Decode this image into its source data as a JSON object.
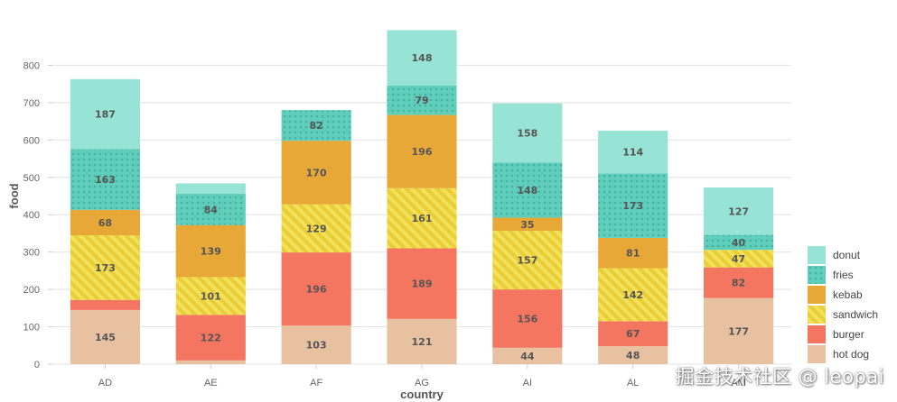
{
  "chart_data": {
    "type": "bar",
    "stacked": true,
    "categories": [
      "AD",
      "AE",
      "AF",
      "AG",
      "AI",
      "AL",
      "AM"
    ],
    "series": [
      {
        "name": "hot dog",
        "values": [
          145,
          10,
          103,
          121,
          44,
          48,
          177
        ],
        "color": "#e8c1a0",
        "pattern": "none"
      },
      {
        "name": "burger",
        "values": [
          27,
          122,
          196,
          189,
          156,
          67,
          82
        ],
        "color": "#f47560",
        "pattern": "none"
      },
      {
        "name": "sandwich",
        "values": [
          173,
          101,
          129,
          161,
          157,
          142,
          47
        ],
        "color": "#f1e15b",
        "pattern": "lines"
      },
      {
        "name": "kebab",
        "values": [
          68,
          139,
          170,
          196,
          35,
          81,
          0
        ],
        "color": "#e8a838",
        "pattern": "none"
      },
      {
        "name": "fries",
        "values": [
          163,
          84,
          82,
          79,
          148,
          173,
          40
        ],
        "color": "#61cdbb",
        "pattern": "dots"
      },
      {
        "name": "donut",
        "values": [
          187,
          28,
          0,
          148,
          158,
          114,
          127
        ],
        "color": "#97e3d5",
        "pattern": "none"
      }
    ],
    "legend_order": [
      "donut",
      "fries",
      "kebab",
      "sandwich",
      "burger",
      "hot dog"
    ],
    "legend_position": "bottom-right",
    "xlabel": "country",
    "ylabel": "food",
    "ylim": [
      0,
      900
    ],
    "yticks": [
      0,
      100,
      200,
      300,
      400,
      500,
      600,
      700,
      800
    ],
    "grid": true,
    "label_min_value": 30
  },
  "watermark": "掘金技术社区 @ leopai"
}
